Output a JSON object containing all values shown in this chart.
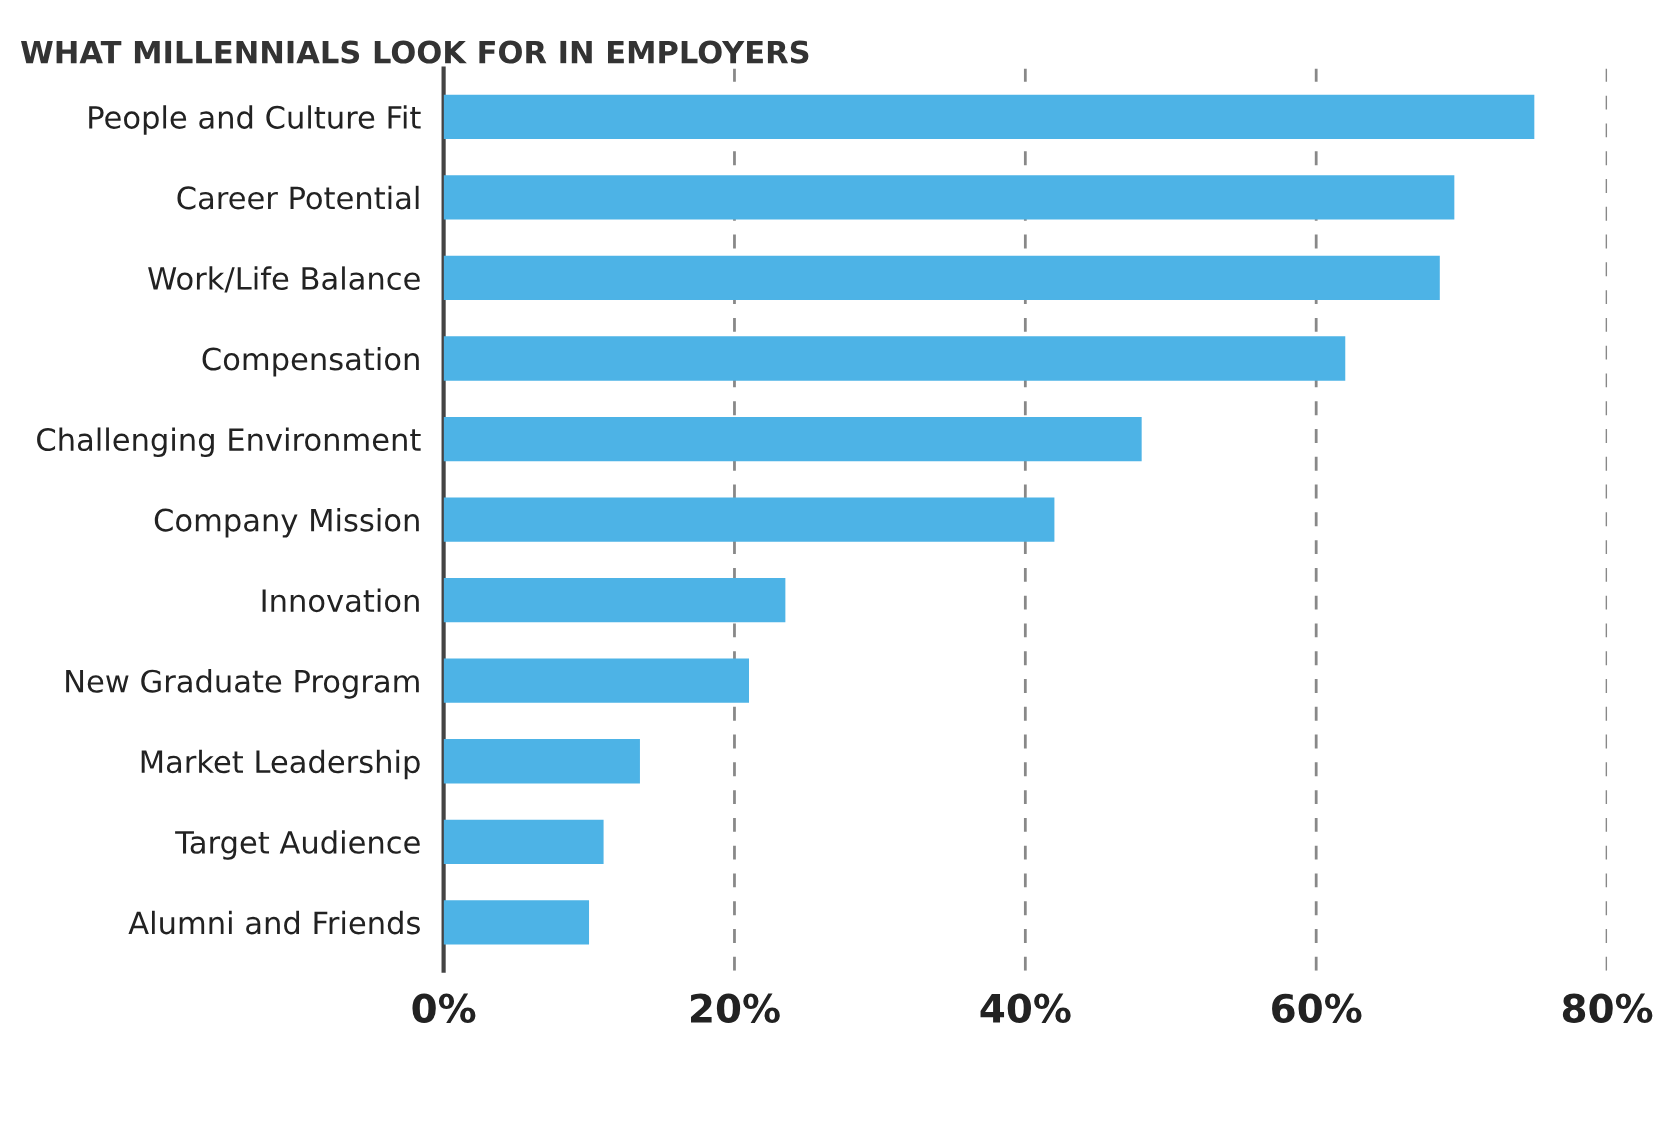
{
  "chart_data": {
    "type": "bar",
    "orientation": "horizontal",
    "title": "WHAT MILLENNIALS LOOK FOR IN EMPLOYERS",
    "categories": [
      "People and Culture Fit",
      "Career Potential",
      "Work/Life Balance",
      "Compensation",
      "Challenging Environment",
      "Company Mission",
      "Innovation",
      "New Graduate Program",
      "Market Leadership",
      "Target Audience",
      "Alumni and Friends"
    ],
    "values": [
      75,
      69.5,
      68.5,
      62,
      48,
      42,
      23.5,
      21,
      13.5,
      11,
      10
    ],
    "color": "#4db3e6",
    "xlim": [
      0,
      80
    ],
    "xticks": [
      {
        "value": 0,
        "label": "0%"
      },
      {
        "value": 20,
        "label": "20%"
      },
      {
        "value": 40,
        "label": "40%"
      },
      {
        "value": 60,
        "label": "60%"
      },
      {
        "value": 80,
        "label": "80%"
      }
    ],
    "grid": "x"
  }
}
